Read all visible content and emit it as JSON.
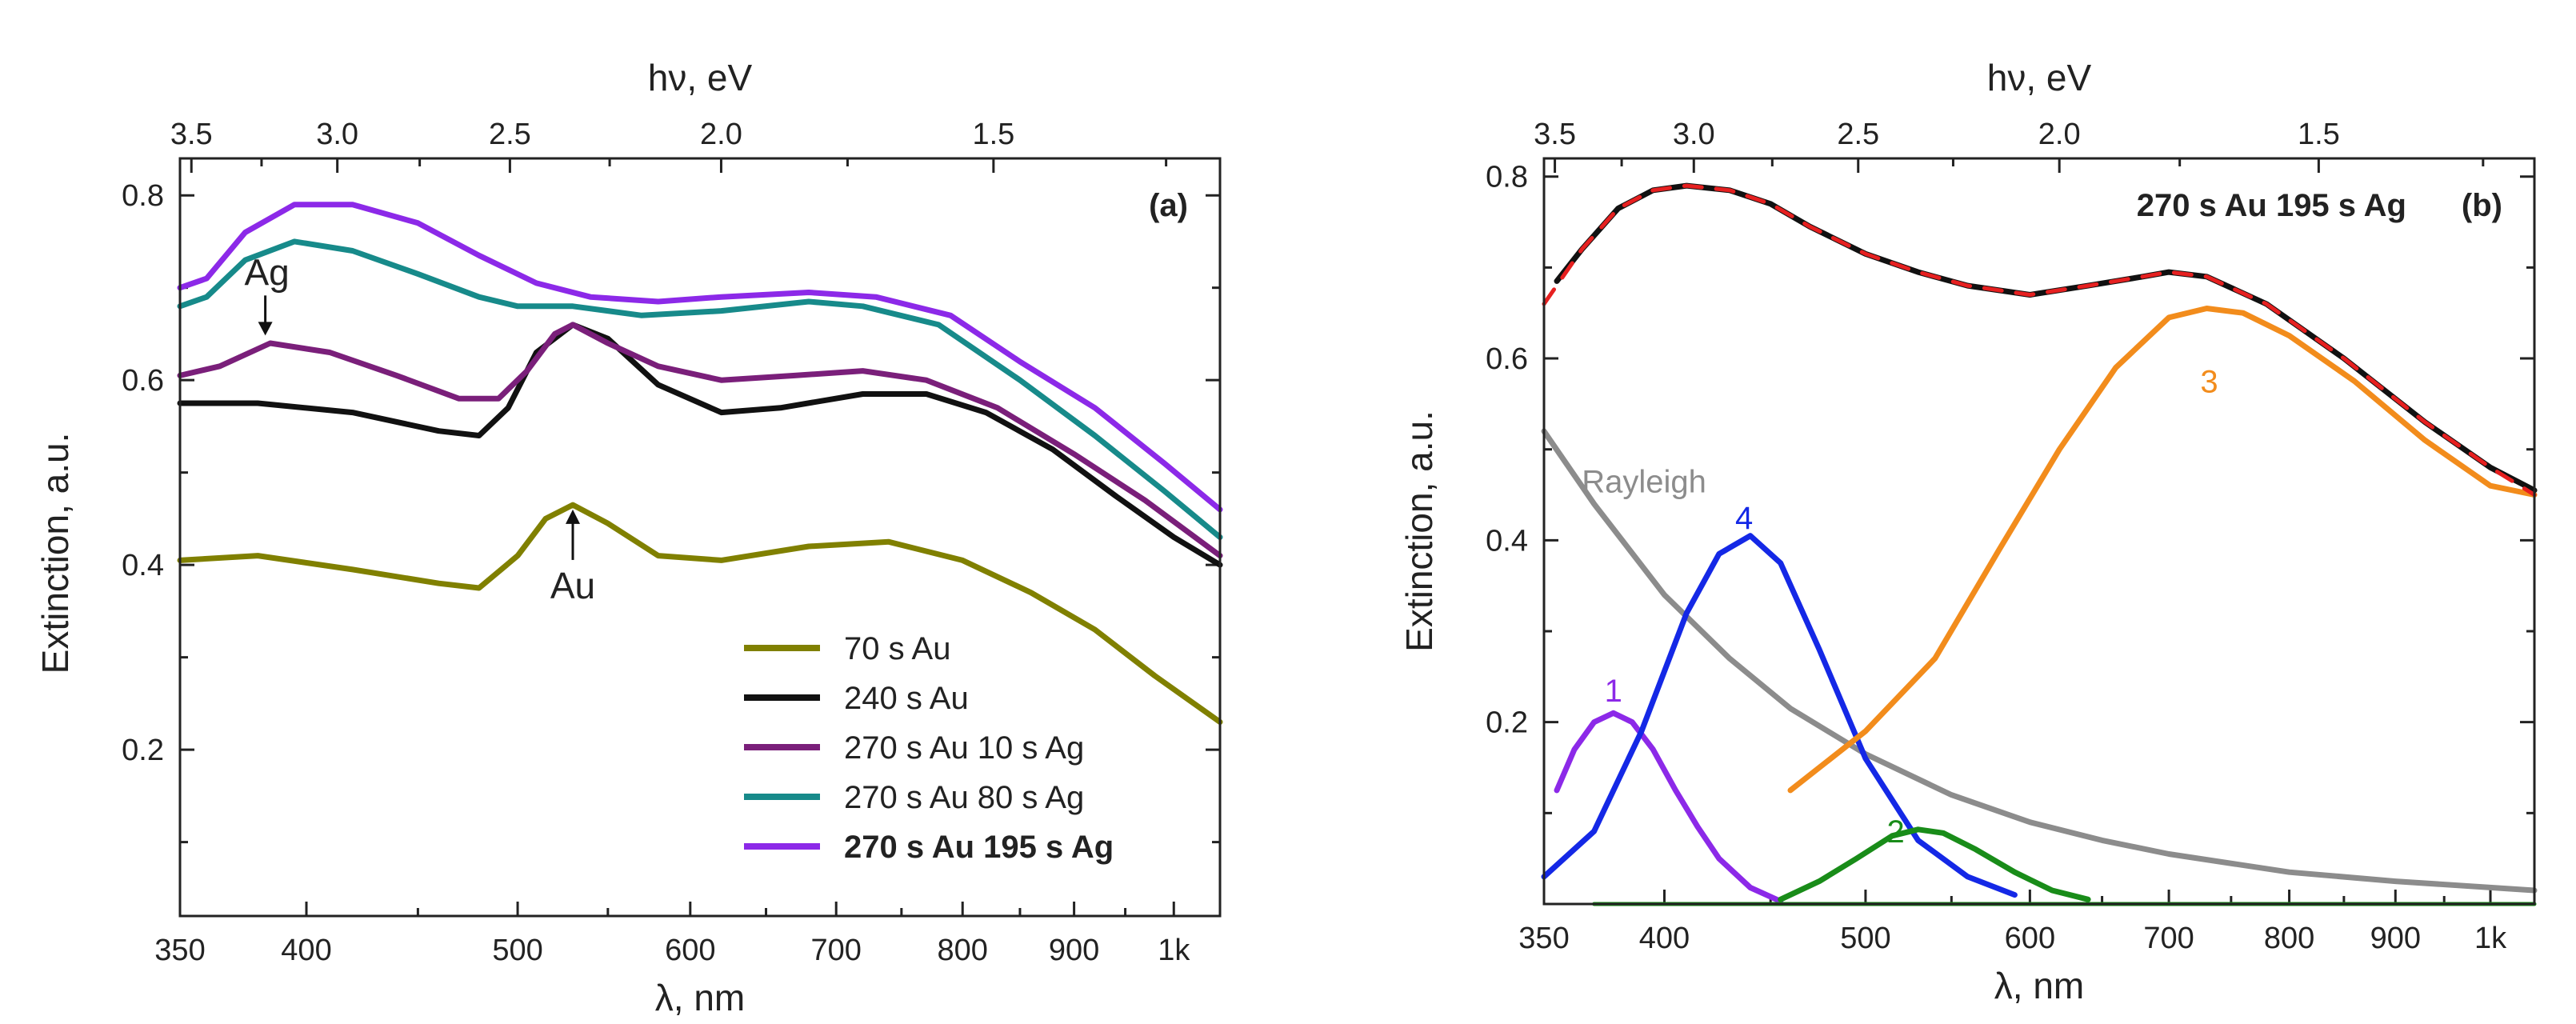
{
  "chart_data": [
    {
      "type": "line",
      "panel_label": "(a)",
      "xlabel": "λ, nm",
      "ylabel": "Extinction, a.u.",
      "top_xlabel": "hν, eV",
      "xscale": "log",
      "xlim": [
        350,
        1050
      ],
      "ylim": [
        0.02,
        0.84
      ],
      "xticks": [
        {
          "v": 350,
          "label": "350"
        },
        {
          "v": 400,
          "label": "400"
        },
        {
          "v": 500,
          "label": "500"
        },
        {
          "v": 600,
          "label": "600"
        },
        {
          "v": 700,
          "label": "700"
        },
        {
          "v": 800,
          "label": "800"
        },
        {
          "v": 900,
          "label": "900"
        },
        {
          "v": 1000,
          "label": "1k"
        }
      ],
      "yticks": [
        {
          "v": 0.2,
          "label": "0.2"
        },
        {
          "v": 0.4,
          "label": "0.4"
        },
        {
          "v": 0.6,
          "label": "0.6"
        },
        {
          "v": 0.8,
          "label": "0.8"
        }
      ],
      "top_ticks": [
        {
          "v": 3.5,
          "label": "3.5"
        },
        {
          "v": 3.0,
          "label": "3.0"
        },
        {
          "v": 2.5,
          "label": "2.5"
        },
        {
          "v": 2.0,
          "label": "2.0"
        },
        {
          "v": 1.5,
          "label": "1.5"
        }
      ],
      "legend_position": "bottom-right",
      "series": [
        {
          "name": "70 s Au",
          "color": "#808000",
          "bold": false,
          "x": [
            350,
            380,
            420,
            460,
            480,
            500,
            515,
            530,
            550,
            580,
            620,
            680,
            740,
            800,
            860,
            920,
            980,
            1050
          ],
          "y": [
            0.405,
            0.41,
            0.395,
            0.38,
            0.375,
            0.41,
            0.45,
            0.465,
            0.445,
            0.41,
            0.405,
            0.42,
            0.425,
            0.405,
            0.37,
            0.33,
            0.28,
            0.23
          ]
        },
        {
          "name": "240 s Au",
          "color": "#111111",
          "bold": false,
          "x": [
            350,
            380,
            420,
            460,
            480,
            495,
            510,
            530,
            550,
            580,
            620,
            660,
            720,
            770,
            820,
            880,
            940,
            1000,
            1050
          ],
          "y": [
            0.575,
            0.575,
            0.565,
            0.545,
            0.54,
            0.57,
            0.63,
            0.66,
            0.645,
            0.595,
            0.565,
            0.57,
            0.585,
            0.585,
            0.565,
            0.525,
            0.475,
            0.43,
            0.4
          ]
        },
        {
          "name": "270 s Au 10 s Ag",
          "color": "#7a1f7a",
          "bold": false,
          "x": [
            350,
            365,
            385,
            410,
            440,
            470,
            490,
            505,
            520,
            530,
            550,
            580,
            620,
            670,
            720,
            770,
            830,
            900,
            970,
            1050
          ],
          "y": [
            0.605,
            0.615,
            0.64,
            0.63,
            0.605,
            0.58,
            0.58,
            0.61,
            0.65,
            0.66,
            0.64,
            0.615,
            0.6,
            0.605,
            0.61,
            0.6,
            0.57,
            0.52,
            0.47,
            0.41
          ]
        },
        {
          "name": "270 s Au 80 s Ag",
          "color": "#178a8a",
          "bold": false,
          "x": [
            350,
            360,
            375,
            395,
            420,
            450,
            480,
            500,
            530,
            570,
            620,
            680,
            720,
            780,
            850,
            920,
            990,
            1050
          ],
          "y": [
            0.68,
            0.69,
            0.73,
            0.75,
            0.74,
            0.715,
            0.69,
            0.68,
            0.68,
            0.67,
            0.675,
            0.685,
            0.68,
            0.66,
            0.6,
            0.54,
            0.48,
            0.43
          ]
        },
        {
          "name": "270 s Au 195 s Ag",
          "color": "#8c29e8",
          "bold": true,
          "x": [
            350,
            360,
            375,
            395,
            420,
            450,
            480,
            510,
            540,
            580,
            620,
            680,
            730,
            790,
            850,
            920,
            990,
            1050
          ],
          "y": [
            0.7,
            0.71,
            0.76,
            0.79,
            0.79,
            0.77,
            0.735,
            0.705,
            0.69,
            0.685,
            0.69,
            0.695,
            0.69,
            0.67,
            0.62,
            0.57,
            0.51,
            0.46
          ]
        }
      ],
      "annotations": [
        {
          "text": "Ag",
          "x": 383,
          "y": 0.644,
          "direction": "down"
        },
        {
          "text": "Au",
          "x": 530,
          "y": 0.466,
          "direction": "up"
        }
      ]
    },
    {
      "type": "line",
      "panel_label": "(b)",
      "title": "270 s Au 195 s Ag",
      "xlabel": "λ, nm",
      "ylabel": "Extinction, a.u.",
      "top_xlabel": "hν, eV",
      "xscale": "log",
      "xlim": [
        350,
        1050
      ],
      "ylim": [
        0.0,
        0.82
      ],
      "xticks": [
        {
          "v": 350,
          "label": "350"
        },
        {
          "v": 400,
          "label": "400"
        },
        {
          "v": 500,
          "label": "500"
        },
        {
          "v": 600,
          "label": "600"
        },
        {
          "v": 700,
          "label": "700"
        },
        {
          "v": 800,
          "label": "800"
        },
        {
          "v": 900,
          "label": "900"
        },
        {
          "v": 1000,
          "label": "1k"
        }
      ],
      "yticks": [
        {
          "v": 0.2,
          "label": "0.2"
        },
        {
          "v": 0.4,
          "label": "0.4"
        },
        {
          "v": 0.6,
          "label": "0.6"
        },
        {
          "v": 0.8,
          "label": "0.8"
        }
      ],
      "top_ticks": [
        {
          "v": 3.5,
          "label": "3.5"
        },
        {
          "v": 3.0,
          "label": "3.0"
        },
        {
          "v": 2.5,
          "label": "2.5"
        },
        {
          "v": 2.0,
          "label": "2.0"
        },
        {
          "v": 1.5,
          "label": "1.5"
        }
      ],
      "series": [
        {
          "name": "Rayleigh",
          "color": "#8c8c8c",
          "label": "Rayleigh",
          "x": [
            350,
            370,
            400,
            430,
            460,
            500,
            550,
            600,
            650,
            700,
            800,
            900,
            1050
          ],
          "y": [
            0.52,
            0.44,
            0.34,
            0.27,
            0.215,
            0.165,
            0.12,
            0.09,
            0.07,
            0.055,
            0.035,
            0.025,
            0.015
          ]
        },
        {
          "name": "1",
          "color": "#8c29e8",
          "label": "1",
          "x": [
            355,
            362,
            370,
            378,
            386,
            395,
            405,
            415,
            425,
            440,
            455
          ],
          "y": [
            0.125,
            0.17,
            0.2,
            0.21,
            0.2,
            0.17,
            0.125,
            0.085,
            0.05,
            0.018,
            0.003
          ]
        },
        {
          "name": "4",
          "color": "#1428e6",
          "label": "4",
          "x": [
            350,
            370,
            390,
            410,
            425,
            440,
            455,
            475,
            500,
            530,
            560,
            590
          ],
          "y": [
            0.03,
            0.08,
            0.19,
            0.32,
            0.385,
            0.405,
            0.375,
            0.28,
            0.16,
            0.07,
            0.03,
            0.01
          ]
        },
        {
          "name": "2",
          "color": "#198c19",
          "label": "2",
          "x": [
            455,
            475,
            495,
            515,
            530,
            545,
            565,
            590,
            615,
            640
          ],
          "y": [
            0.005,
            0.025,
            0.05,
            0.075,
            0.082,
            0.078,
            0.06,
            0.035,
            0.015,
            0.005
          ]
        },
        {
          "name": "3",
          "color": "#f28c1c",
          "label": "3",
          "x": [
            460,
            500,
            540,
            580,
            620,
            660,
            700,
            730,
            760,
            800,
            860,
            930,
            1000,
            1050
          ],
          "y": [
            0.125,
            0.19,
            0.27,
            0.39,
            0.5,
            0.59,
            0.645,
            0.655,
            0.65,
            0.625,
            0.575,
            0.51,
            0.46,
            0.45
          ]
        },
        {
          "name": "baseline",
          "color": "#198c19",
          "label": "",
          "x": [
            370,
            1050
          ],
          "y": [
            0.0,
            0.0
          ]
        },
        {
          "name": "data",
          "color": "#111111",
          "label": "",
          "x": [
            355,
            365,
            380,
            395,
            410,
            430,
            450,
            470,
            500,
            530,
            560,
            600,
            640,
            680,
            700,
            730,
            780,
            850,
            930,
            1000,
            1050
          ],
          "y": [
            0.685,
            0.72,
            0.765,
            0.785,
            0.79,
            0.785,
            0.77,
            0.745,
            0.715,
            0.695,
            0.68,
            0.67,
            0.68,
            0.69,
            0.695,
            0.69,
            0.66,
            0.6,
            0.53,
            0.48,
            0.455
          ]
        },
        {
          "name": "fit",
          "color": "#e62020",
          "label": "",
          "dashed": true,
          "x": [
            350,
            365,
            380,
            395,
            410,
            430,
            450,
            470,
            500,
            530,
            560,
            600,
            640,
            680,
            700,
            730,
            780,
            850,
            930,
            1000,
            1050
          ],
          "y": [
            0.66,
            0.72,
            0.765,
            0.785,
            0.79,
            0.785,
            0.77,
            0.745,
            0.715,
            0.695,
            0.68,
            0.67,
            0.68,
            0.69,
            0.695,
            0.69,
            0.66,
            0.6,
            0.53,
            0.48,
            0.45
          ]
        }
      ]
    }
  ]
}
